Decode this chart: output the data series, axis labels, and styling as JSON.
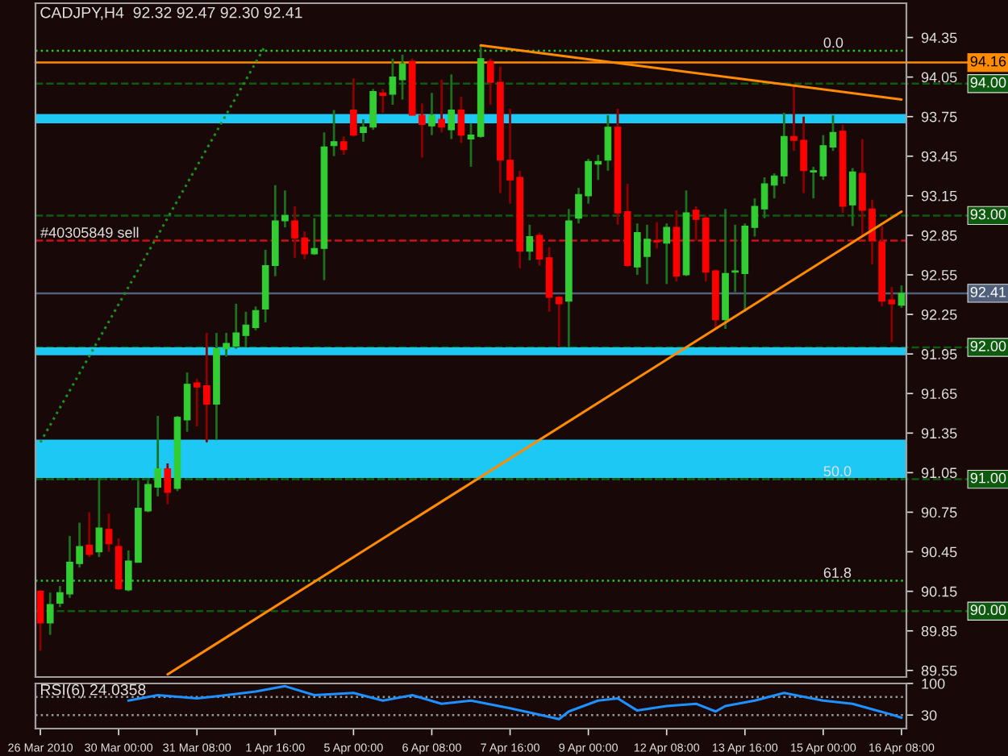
{
  "chart_data": [
    {
      "type": "candlestick",
      "title": "CADJPY,H4  92.32 92.47 92.30 92.41",
      "categories": [
        "26 Mar 2010",
        null,
        null,
        null,
        null,
        null,
        null,
        null,
        "30 Mar 00:00",
        null,
        null,
        null,
        null,
        null,
        null,
        null,
        "31 Mar 08:00",
        null,
        null,
        null,
        null,
        null,
        null,
        null,
        "1 Apr 16:00",
        null,
        null,
        null,
        null,
        null,
        null,
        null,
        "5 Apr 00:00",
        null,
        null,
        null,
        null,
        null,
        null,
        null,
        "6 Apr 08:00",
        null,
        null,
        null,
        null,
        null,
        null,
        null,
        "7 Apr 16:00",
        null,
        null,
        null,
        null,
        null,
        null,
        null,
        "9 Apr 00:00",
        null,
        null,
        null,
        null,
        null,
        null,
        null,
        "12 Apr 08:00",
        null,
        null,
        null,
        null,
        null,
        null,
        null,
        "13 Apr 16:00",
        null,
        null,
        null,
        null,
        null,
        null,
        null,
        "15 Apr 00:00",
        null,
        null,
        null,
        null,
        null,
        null,
        null,
        "16 Apr 08:00"
      ],
      "ohlc": [
        [
          90.15,
          90.16,
          89.7,
          89.91
        ],
        [
          89.91,
          90.14,
          89.82,
          90.05
        ],
        [
          90.06,
          90.19,
          90.03,
          90.14
        ],
        [
          90.13,
          90.57,
          90.1,
          90.37
        ],
        [
          90.36,
          90.67,
          90.33,
          90.49
        ],
        [
          90.5,
          90.75,
          90.41,
          90.43
        ],
        [
          90.45,
          91.01,
          90.41,
          90.63
        ],
        [
          90.62,
          90.74,
          90.45,
          90.51
        ],
        [
          90.49,
          90.55,
          90.16,
          90.17
        ],
        [
          90.16,
          90.46,
          90.15,
          90.38
        ],
        [
          90.37,
          90.99,
          90.37,
          90.78
        ],
        [
          90.76,
          90.99,
          90.75,
          90.96
        ],
        [
          90.94,
          91.48,
          90.87,
          91.08
        ],
        [
          91.08,
          91.12,
          90.81,
          90.9
        ],
        [
          90.93,
          91.48,
          90.91,
          91.47
        ],
        [
          91.45,
          91.81,
          91.36,
          91.72
        ],
        [
          91.73,
          91.76,
          91.4,
          91.7
        ],
        [
          91.71,
          92.11,
          91.28,
          91.57
        ],
        [
          91.57,
          92.11,
          91.3,
          91.99
        ],
        [
          91.99,
          92.11,
          91.93,
          92.03
        ],
        [
          92.01,
          92.33,
          91.99,
          92.11
        ],
        [
          92.09,
          92.27,
          92.0,
          92.17
        ],
        [
          92.15,
          92.31,
          92.13,
          92.28
        ],
        [
          92.29,
          92.74,
          92.19,
          92.62
        ],
        [
          92.62,
          93.23,
          92.54,
          92.96
        ],
        [
          92.96,
          93.19,
          92.91,
          93.0
        ],
        [
          92.96,
          93.07,
          92.68,
          92.83
        ],
        [
          92.83,
          92.88,
          92.67,
          92.71
        ],
        [
          92.71,
          92.98,
          92.7,
          92.75
        ],
        [
          92.75,
          93.63,
          92.51,
          93.52
        ],
        [
          93.53,
          93.8,
          93.45,
          93.56
        ],
        [
          93.56,
          93.6,
          93.46,
          93.5
        ],
        [
          93.8,
          94.04,
          93.6,
          93.61
        ],
        [
          93.63,
          93.73,
          93.56,
          93.67
        ],
        [
          93.67,
          93.96,
          93.65,
          93.94
        ],
        [
          93.93,
          93.96,
          93.78,
          93.91
        ],
        [
          93.92,
          94.19,
          93.84,
          94.05
        ],
        [
          94.03,
          94.22,
          93.88,
          94.15
        ],
        [
          94.17,
          94.19,
          93.76,
          93.76
        ],
        [
          93.76,
          93.85,
          93.44,
          93.69
        ],
        [
          93.68,
          93.93,
          93.61,
          93.76
        ],
        [
          93.73,
          94.03,
          93.63,
          93.67
        ],
        [
          93.65,
          94.07,
          93.58,
          93.8
        ],
        [
          93.8,
          93.9,
          93.55,
          93.61
        ],
        [
          93.58,
          93.7,
          93.37,
          93.61
        ],
        [
          93.6,
          94.29,
          93.59,
          94.19
        ],
        [
          94.17,
          94.19,
          93.84,
          94.01
        ],
        [
          94.01,
          94.13,
          93.17,
          93.42
        ],
        [
          93.42,
          93.81,
          93.09,
          93.27
        ],
        [
          93.29,
          93.34,
          92.6,
          92.73
        ],
        [
          92.73,
          92.93,
          92.66,
          92.84
        ],
        [
          92.85,
          92.87,
          92.62,
          92.67
        ],
        [
          92.68,
          92.76,
          92.27,
          92.38
        ],
        [
          92.38,
          92.39,
          92.0,
          92.33
        ],
        [
          92.35,
          93.05,
          92.0,
          92.96
        ],
        [
          92.98,
          93.21,
          92.94,
          93.16
        ],
        [
          93.15,
          93.43,
          93.09,
          93.41
        ],
        [
          93.39,
          93.46,
          93.27,
          93.41
        ],
        [
          93.42,
          93.76,
          93.34,
          93.67
        ],
        [
          93.67,
          93.81,
          92.93,
          93.02
        ],
        [
          93.03,
          93.24,
          92.61,
          92.62
        ],
        [
          92.61,
          92.94,
          92.55,
          92.87
        ],
        [
          92.69,
          92.93,
          92.48,
          92.82
        ],
        [
          92.81,
          92.95,
          92.75,
          92.8
        ],
        [
          92.79,
          92.94,
          92.48,
          92.91
        ],
        [
          92.91,
          93.04,
          92.5,
          92.54
        ],
        [
          92.55,
          93.19,
          92.54,
          93.02
        ],
        [
          93.04,
          93.07,
          92.81,
          92.97
        ],
        [
          92.98,
          93.0,
          92.5,
          92.57
        ],
        [
          92.58,
          92.59,
          92.14,
          92.21
        ],
        [
          92.21,
          93.05,
          92.14,
          92.56
        ],
        [
          92.57,
          92.93,
          92.42,
          92.58
        ],
        [
          92.56,
          92.94,
          92.27,
          92.92
        ],
        [
          92.91,
          93.13,
          92.84,
          93.07
        ],
        [
          93.05,
          93.29,
          92.98,
          93.24
        ],
        [
          93.23,
          93.32,
          93.13,
          93.3
        ],
        [
          93.3,
          93.78,
          93.24,
          93.6
        ],
        [
          93.6,
          93.98,
          93.49,
          93.57
        ],
        [
          93.57,
          93.75,
          93.17,
          93.34
        ],
        [
          93.33,
          93.37,
          93.13,
          93.34
        ],
        [
          93.3,
          93.61,
          93.27,
          93.53
        ],
        [
          93.52,
          93.76,
          93.49,
          93.63
        ],
        [
          93.64,
          93.69,
          93.02,
          93.07
        ],
        [
          93.08,
          93.36,
          92.92,
          93.33
        ],
        [
          93.32,
          93.58,
          92.84,
          93.04
        ],
        [
          93.05,
          93.12,
          92.63,
          92.81
        ],
        [
          92.8,
          92.92,
          92.31,
          92.35
        ],
        [
          92.36,
          92.46,
          92.04,
          92.33
        ],
        [
          92.32,
          92.47,
          92.3,
          92.41
        ]
      ],
      "colors": [
        "#ff0000",
        "#32cd32",
        "#32cd32",
        "#32cd32",
        "#32cd32",
        "#ff0000",
        "#32cd32",
        "#ff0000",
        "#ff0000",
        "#32cd32",
        "#32cd32",
        "#32cd32",
        "#32cd32",
        "#ff0000",
        "#32cd32",
        "#32cd32",
        "#ff0000",
        "#ff0000",
        "#32cd32",
        "#32cd32",
        "#32cd32",
        "#32cd32",
        "#32cd32",
        "#32cd32",
        "#32cd32",
        "#32cd32",
        "#ff0000",
        "#ff0000",
        "#32cd32",
        "#32cd32",
        "#32cd32",
        "#ff0000",
        "#ff0000",
        "#32cd32",
        "#32cd32",
        "#ff0000",
        "#32cd32",
        "#32cd32",
        "#ff0000",
        "#ff0000",
        "#32cd32",
        "#ff0000",
        "#32cd32",
        "#ff0000",
        "#32cd32",
        "#32cd32",
        "#ff0000",
        "#ff0000",
        "#ff0000",
        "#ff0000",
        "#32cd32",
        "#ff0000",
        "#ff0000",
        "#ff0000",
        "#32cd32",
        "#32cd32",
        "#32cd32",
        "#32cd32",
        "#32cd32",
        "#ff0000",
        "#ff0000",
        "#32cd32",
        "#32cd32",
        "#ff0000",
        "#32cd32",
        "#ff0000",
        "#32cd32",
        "#ff0000",
        "#ff0000",
        "#ff0000",
        "#32cd32",
        "#32cd32",
        "#32cd32",
        "#32cd32",
        "#32cd32",
        "#32cd32",
        "#32cd32",
        "#ff0000",
        "#ff0000",
        "#32cd32",
        "#32cd32",
        "#32cd32",
        "#ff0000",
        "#32cd32",
        "#ff0000",
        "#ff0000",
        "#ff0000",
        "#ff0000",
        "#32cd32"
      ],
      "series": [
        {
          "type": "line",
          "color": "#ff8c00",
          "line_style": "solid",
          "values": [
            null,
            null,
            null,
            null,
            null,
            null,
            null,
            null,
            null,
            null,
            null,
            null,
            null,
            null,
            null,
            null,
            null,
            null,
            null,
            null,
            null,
            null,
            null,
            null,
            null,
            null,
            null,
            null,
            null,
            null,
            null,
            null,
            null,
            null,
            null,
            null,
            null,
            null,
            null,
            null,
            null,
            null,
            null,
            null,
            null,
            94.29,
            null,
            null,
            null,
            null,
            null,
            null,
            null,
            null,
            null,
            null,
            null,
            null,
            null,
            null,
            null,
            null,
            null,
            null,
            null,
            null,
            null,
            null,
            null,
            null,
            null,
            null,
            null,
            null,
            null,
            null,
            null,
            null,
            null,
            null,
            null,
            null,
            null,
            null,
            null,
            null,
            null,
            null,
            93.88
          ]
        },
        {
          "type": "line",
          "color": "#ff8c00",
          "line_style": "solid",
          "values": [
            null,
            null,
            null,
            null,
            null,
            null,
            null,
            null,
            null,
            null,
            null,
            null,
            null,
            89.52,
            null,
            null,
            null,
            null,
            null,
            null,
            null,
            null,
            null,
            null,
            null,
            null,
            null,
            null,
            null,
            null,
            null,
            null,
            null,
            null,
            null,
            null,
            null,
            null,
            null,
            null,
            null,
            null,
            null,
            null,
            null,
            null,
            null,
            null,
            null,
            null,
            null,
            null,
            null,
            null,
            null,
            null,
            null,
            null,
            null,
            null,
            null,
            null,
            null,
            null,
            null,
            null,
            null,
            null,
            null,
            null,
            null,
            null,
            null,
            null,
            null,
            null,
            null,
            null,
            null,
            null,
            null,
            null,
            null,
            null,
            null,
            null,
            null,
            null,
            93.03
          ]
        },
        {
          "type": "line",
          "color": "#1f8f1f",
          "line_style": "dotted",
          "values": [
            91.28,
            null,
            null,
            null,
            null,
            null,
            null,
            null,
            null,
            null,
            null,
            null,
            null,
            null,
            null,
            null,
            null,
            null,
            null,
            null,
            null,
            null,
            null,
            94.29,
            null,
            null,
            null,
            null,
            null,
            null,
            null,
            null,
            null,
            null,
            null,
            null,
            null,
            null,
            null,
            null,
            null,
            null,
            null,
            null,
            null,
            null,
            null,
            null,
            null,
            null,
            null,
            null,
            null,
            null,
            null,
            null,
            null,
            null,
            null,
            null,
            null,
            null,
            null,
            null,
            null,
            null,
            null,
            null,
            null,
            null,
            null,
            null,
            null,
            null,
            null,
            null,
            null,
            null,
            null,
            null,
            null,
            null,
            null,
            null,
            null,
            null,
            null,
            null,
            null
          ]
        }
      ],
      "ylim": [
        89.5,
        94.61
      ],
      "yticks": [
        94.35,
        94.05,
        93.75,
        93.45,
        93.15,
        92.85,
        92.55,
        92.25,
        91.95,
        91.65,
        91.35,
        91.05,
        90.75,
        90.45,
        90.15,
        89.85,
        89.55
      ],
      "tick_labels": "y",
      "ref_lines": [
        {
          "axis": "y",
          "value": 94.25,
          "color": "#22cc22",
          "line_style": "dotted"
        },
        {
          "axis": "y",
          "value": 91.0,
          "color": "#22cc22",
          "line_style": "dotted"
        },
        {
          "axis": "y",
          "value": 90.23,
          "color": "#22cc22",
          "line_style": "dotted"
        },
        {
          "axis": "y",
          "value": 94.16,
          "label": "94.16",
          "color": "#ff8c00",
          "line_style": "solid"
        },
        {
          "axis": "y",
          "value": 94.0,
          "label": "94.00",
          "color": "#0e5a0e",
          "line_style": "dashed"
        },
        {
          "axis": "y",
          "value": 93.0,
          "label": "93.00",
          "color": "#0e5a0e",
          "line_style": "dashed"
        },
        {
          "axis": "y",
          "value": 92.0,
          "label": "92.00",
          "color": "#0e5a0e",
          "line_style": "dashed"
        },
        {
          "axis": "y",
          "value": 91.0,
          "label": "91.00",
          "color": "#0e5a0e",
          "line_style": "dashed"
        },
        {
          "axis": "y",
          "value": 90.0,
          "label": "90.00",
          "color": "#0e5a0e",
          "line_style": "dashed"
        },
        {
          "axis": "y",
          "value": 92.41,
          "label": "92.41",
          "color": "#50607a",
          "line_style": "solid"
        },
        {
          "axis": "y",
          "value": 92.81,
          "color": "#cc1111",
          "line_style": "dashed"
        }
      ],
      "bands": [
        {
          "axis": "y",
          "from": 93.7,
          "to": 93.77,
          "color": "#1ec8f5"
        },
        {
          "axis": "y",
          "from": 91.94,
          "to": 92.0,
          "color": "#1ec8f5"
        },
        {
          "axis": "y",
          "from": 91.01,
          "to": 91.3,
          "color": "#1ec8f5"
        }
      ],
      "annotations": [
        {
          "text": "#40305849 sell",
          "x": "26 Mar 2010",
          "y": 92.81
        },
        {
          "text": "0.0",
          "x": "15 Apr 00:00",
          "y": 94.25
        },
        {
          "text": "50.0",
          "x": "15 Apr 00:00",
          "y": 91.0
        },
        {
          "text": "61.8",
          "x": "15 Apr 00:00",
          "y": 90.23
        }
      ]
    },
    {
      "type": "line",
      "title": "RSI(6) 24.0358",
      "categories": [
        "26 Mar 2010",
        null,
        null,
        null,
        null,
        null,
        null,
        null,
        "30 Mar 00:00",
        null,
        null,
        null,
        null,
        null,
        null,
        null,
        "31 Mar 08:00",
        null,
        null,
        null,
        null,
        null,
        null,
        null,
        "1 Apr 16:00",
        null,
        null,
        null,
        null,
        null,
        null,
        null,
        "5 Apr 00:00",
        null,
        null,
        null,
        null,
        null,
        null,
        null,
        "6 Apr 08:00",
        null,
        null,
        null,
        null,
        null,
        null,
        null,
        "7 Apr 16:00",
        null,
        null,
        null,
        null,
        null,
        null,
        null,
        "9 Apr 00:00",
        null,
        null,
        null,
        null,
        null,
        null,
        null,
        "12 Apr 08:00",
        null,
        null,
        null,
        null,
        null,
        null,
        null,
        "13 Apr 16:00",
        null,
        null,
        null,
        null,
        null,
        null,
        null,
        "15 Apr 00:00",
        null,
        null,
        null,
        null,
        null,
        null,
        null,
        "16 Apr 08:00"
      ],
      "series": [
        {
          "color": "#1e90ff",
          "values": [
            null,
            null,
            null,
            null,
            null,
            null,
            null,
            null,
            null,
            62,
            null,
            null,
            74,
            null,
            null,
            null,
            67,
            null,
            null,
            74,
            null,
            null,
            82,
            null,
            null,
            94,
            null,
            null,
            74,
            null,
            null,
            null,
            79,
            null,
            null,
            62,
            null,
            null,
            74,
            null,
            null,
            55,
            null,
            null,
            62,
            null,
            null,
            null,
            45,
            null,
            null,
            31,
            null,
            21,
            38,
            null,
            null,
            62,
            null,
            67,
            null,
            40,
            null,
            null,
            50,
            null,
            null,
            55,
            null,
            38,
            50,
            null,
            null,
            62,
            null,
            null,
            79,
            null,
            null,
            null,
            62,
            null,
            null,
            55,
            null,
            43,
            null,
            31,
            24
          ]
        }
      ],
      "ylim": [
        0,
        100
      ],
      "yticks": [
        100,
        30
      ],
      "ref_lines": [
        {
          "axis": "y",
          "value": 70,
          "color": "#9a9a9a",
          "line_style": "dotted"
        },
        {
          "axis": "y",
          "value": 30,
          "color": "#9a9a9a",
          "line_style": "dotted"
        }
      ]
    }
  ]
}
